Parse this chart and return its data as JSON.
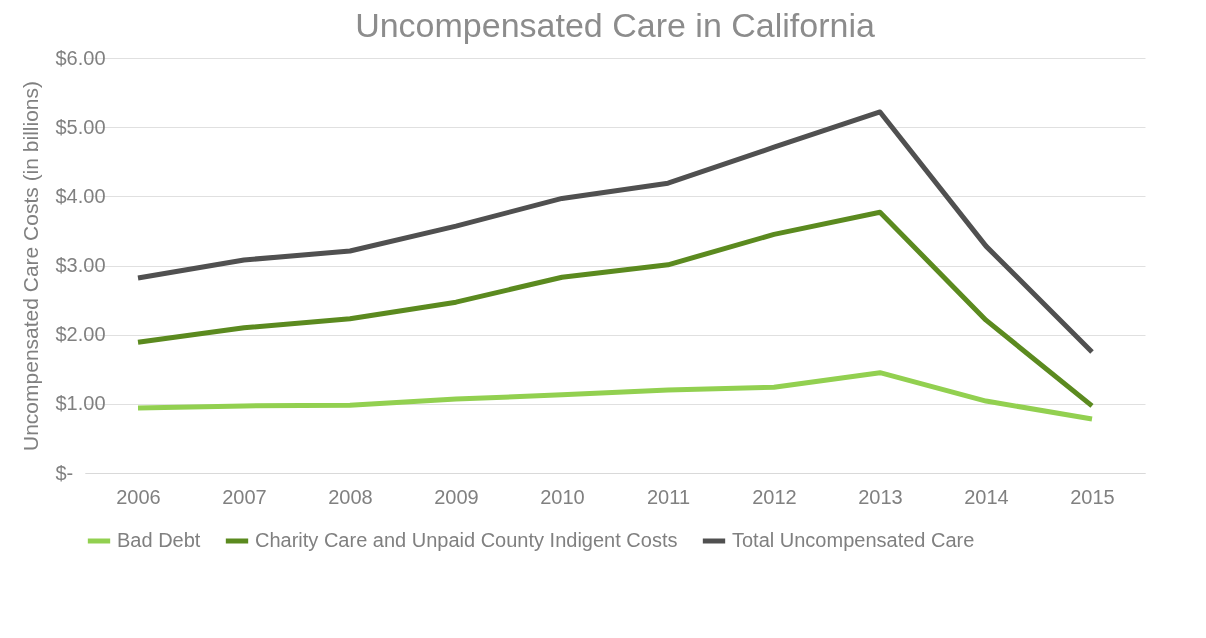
{
  "chart_data": {
    "type": "line",
    "title": "Uncompensated Care in California",
    "ylabel": "Uncompensated Care Costs (in billions)",
    "categories": [
      "2006",
      "2007",
      "2008",
      "2009",
      "2010",
      "2011",
      "2012",
      "2013",
      "2014",
      "2015"
    ],
    "series": [
      {
        "name": "Bad Debt",
        "color": "#92d050",
        "values": [
          0.94,
          0.97,
          0.98,
          1.07,
          1.13,
          1.2,
          1.24,
          1.45,
          1.04,
          0.78
        ]
      },
      {
        "name": "Charity Care and Unpaid County Indigent Costs",
        "color": "#5b8a1f",
        "values": [
          1.89,
          2.1,
          2.23,
          2.47,
          2.83,
          3.01,
          3.45,
          3.77,
          2.21,
          0.97
        ]
      },
      {
        "name": "Total Uncompensated Care",
        "color": "#505050",
        "values": [
          2.82,
          3.08,
          3.21,
          3.57,
          3.97,
          4.19,
          4.71,
          5.22,
          3.28,
          1.75
        ]
      }
    ],
    "ylim": [
      0,
      6
    ],
    "yticks": [
      {
        "value": 0,
        "label": "$-"
      },
      {
        "value": 1,
        "label": "$1.00"
      },
      {
        "value": 2,
        "label": "$2.00"
      },
      {
        "value": 3,
        "label": "$3.00"
      },
      {
        "value": 4,
        "label": "$4.00"
      },
      {
        "value": 5,
        "label": "$5.00"
      },
      {
        "value": 6,
        "label": "$6.00"
      }
    ],
    "grid": "y",
    "legend": "bottom",
    "marker": "none",
    "line_style": "solid"
  }
}
